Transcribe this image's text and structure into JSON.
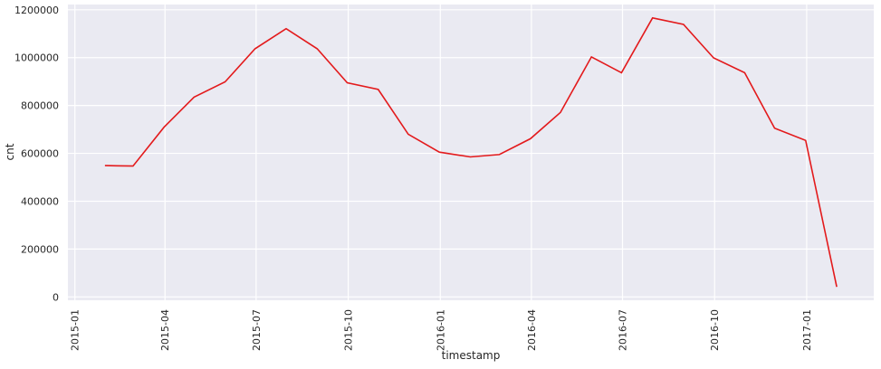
{
  "chart_data": {
    "type": "line",
    "title": "",
    "xlabel": "timestamp",
    "ylabel": "cnt",
    "x_ticks": [
      "2015-01",
      "2015-04",
      "2015-07",
      "2015-10",
      "2016-01",
      "2016-04",
      "2016-07",
      "2016-10",
      "2017-01"
    ],
    "y_ticks": [
      0,
      200000,
      400000,
      600000,
      800000,
      1000000,
      1200000
    ],
    "xlim": [
      "2014-12-25",
      "2017-03-09"
    ],
    "ylim": [
      -14000,
      1222000
    ],
    "grid": true,
    "background": "#eaeaf2",
    "line_color": "#e31a1c",
    "series": [
      {
        "x": [
          "2015-01-31",
          "2015-02-28",
          "2015-03-31",
          "2015-04-30",
          "2015-05-31",
          "2015-06-30",
          "2015-07-31",
          "2015-08-31",
          "2015-09-30",
          "2015-10-31",
          "2015-11-30",
          "2015-12-31",
          "2016-01-31",
          "2016-02-29",
          "2016-03-31",
          "2016-04-30",
          "2016-05-31",
          "2016-06-30",
          "2016-07-31",
          "2016-08-31",
          "2016-09-30",
          "2016-10-31",
          "2016-11-30",
          "2016-12-31",
          "2017-01-31"
        ],
        "y": [
          549000,
          547000,
          709000,
          835000,
          899000,
          1037000,
          1121000,
          1037000,
          895000,
          867000,
          680000,
          605000,
          585000,
          595000,
          661000,
          771000,
          1003000,
          937000,
          1166000,
          1139000,
          999000,
          937000,
          705000,
          654000,
          42000
        ]
      }
    ]
  }
}
